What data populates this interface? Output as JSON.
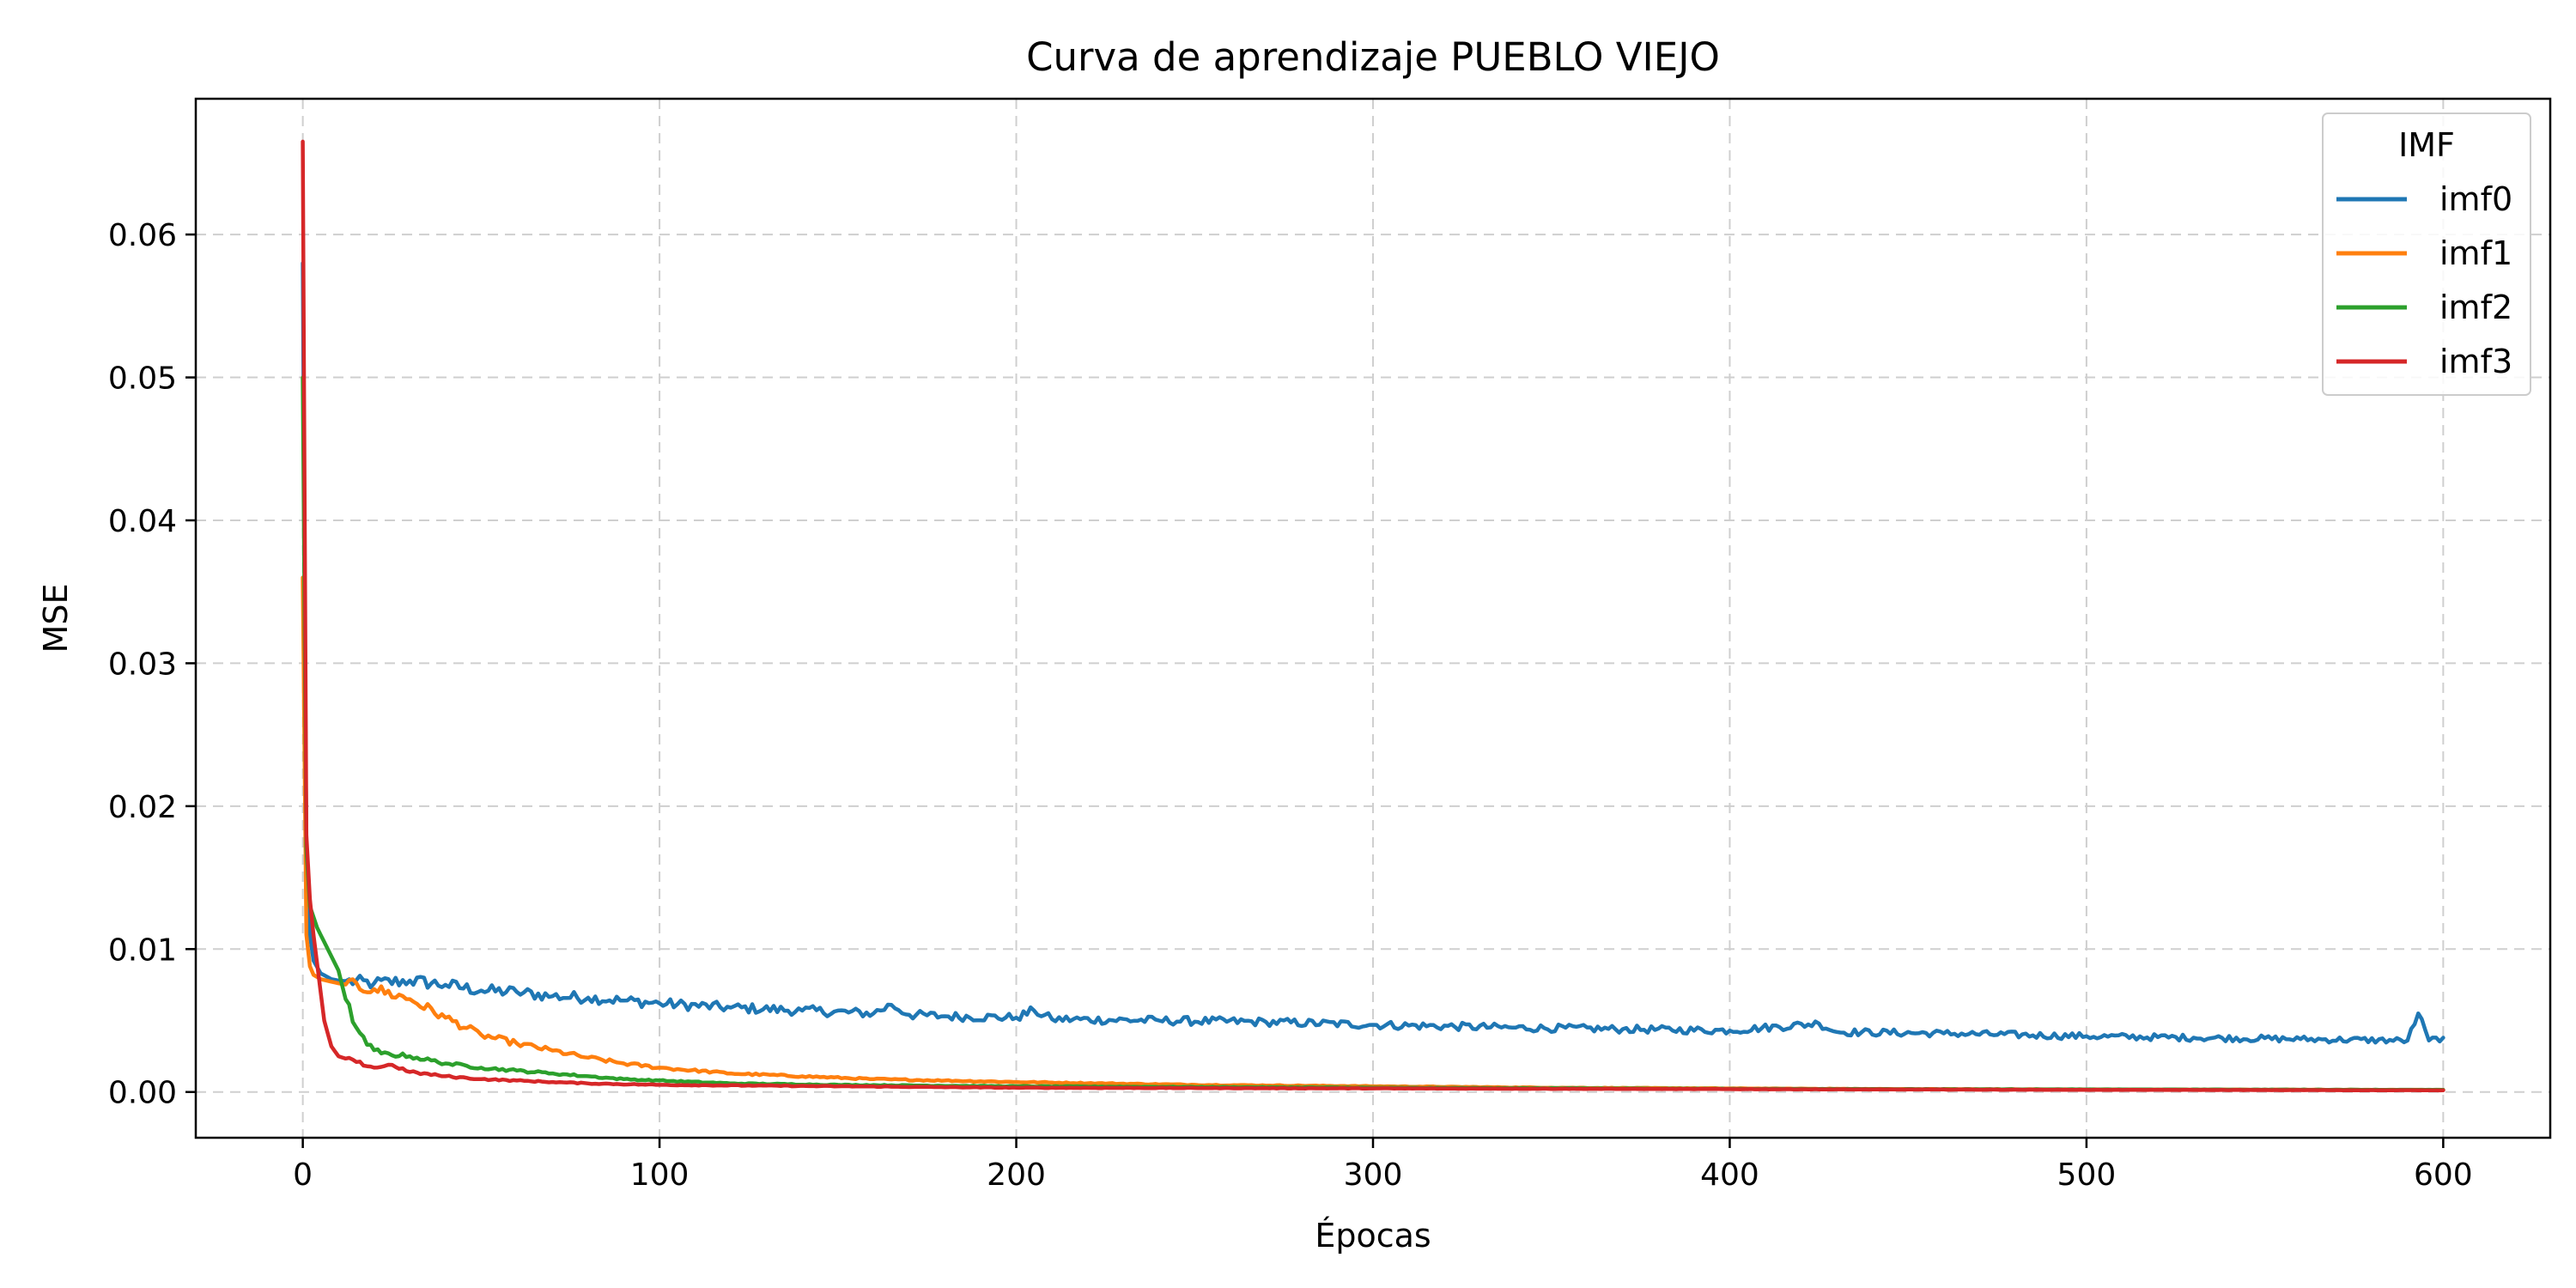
{
  "chart_data": {
    "type": "line",
    "title": "Curva de aprendizaje PUEBLO VIEJO",
    "xlabel": "Épocas",
    "ylabel": "MSE",
    "xlim": [
      -30,
      630
    ],
    "ylim": [
      -0.0032,
      0.0695
    ],
    "xticks": [
      0,
      100,
      200,
      300,
      400,
      500,
      600
    ],
    "xtick_labels": [
      "0",
      "100",
      "200",
      "300",
      "400",
      "500",
      "600"
    ],
    "yticks": [
      0.0,
      0.01,
      0.02,
      0.03,
      0.04,
      0.05,
      0.06
    ],
    "ytick_labels": [
      "0.00",
      "0.01",
      "0.02",
      "0.03",
      "0.04",
      "0.05",
      "0.06"
    ],
    "grid": true,
    "legend": {
      "title": "IMF",
      "placement": "top-right"
    },
    "series": [
      {
        "name": "imf0",
        "color": "#1f77b4",
        "points": [
          [
            0,
            0.058
          ],
          [
            1,
            0.016
          ],
          [
            2,
            0.011
          ],
          [
            3,
            0.0092
          ],
          [
            5,
            0.0083
          ],
          [
            8,
            0.0079
          ],
          [
            10,
            0.0078
          ],
          [
            20,
            0.0076
          ],
          [
            30,
            0.0078
          ],
          [
            40,
            0.0075
          ],
          [
            50,
            0.0071
          ],
          [
            60,
            0.007
          ],
          [
            70,
            0.0067
          ],
          [
            80,
            0.0066
          ],
          [
            90,
            0.0064
          ],
          [
            100,
            0.0062
          ],
          [
            120,
            0.0059
          ],
          [
            140,
            0.0057
          ],
          [
            160,
            0.0055
          ],
          [
            165,
            0.0061
          ],
          [
            170,
            0.0054
          ],
          [
            180,
            0.0053
          ],
          [
            200,
            0.0052
          ],
          [
            205,
            0.0057
          ],
          [
            210,
            0.0051
          ],
          [
            240,
            0.005
          ],
          [
            270,
            0.0049
          ],
          [
            300,
            0.0047
          ],
          [
            340,
            0.0045
          ],
          [
            370,
            0.0044
          ],
          [
            400,
            0.0043
          ],
          [
            425,
            0.0048
          ],
          [
            430,
            0.0042
          ],
          [
            460,
            0.0041
          ],
          [
            500,
            0.0039
          ],
          [
            530,
            0.0038
          ],
          [
            560,
            0.0037
          ],
          [
            590,
            0.0036
          ],
          [
            593,
            0.0055
          ],
          [
            596,
            0.0036
          ],
          [
            600,
            0.0038
          ]
        ]
      },
      {
        "name": "imf1",
        "color": "#ff7f0e",
        "points": [
          [
            0,
            0.036
          ],
          [
            1,
            0.011
          ],
          [
            2,
            0.0088
          ],
          [
            3,
            0.0082
          ],
          [
            5,
            0.0079
          ],
          [
            10,
            0.0076
          ],
          [
            20,
            0.0072
          ],
          [
            30,
            0.0065
          ],
          [
            40,
            0.0052
          ],
          [
            50,
            0.004
          ],
          [
            60,
            0.0034
          ],
          [
            70,
            0.0029
          ],
          [
            80,
            0.0024
          ],
          [
            90,
            0.002
          ],
          [
            100,
            0.0017
          ],
          [
            120,
            0.0013
          ],
          [
            140,
            0.0011
          ],
          [
            160,
            0.0009
          ],
          [
            180,
            0.0008
          ],
          [
            200,
            0.0007
          ],
          [
            250,
            0.0005
          ],
          [
            300,
            0.0004
          ],
          [
            350,
            0.0003
          ],
          [
            400,
            0.00025
          ],
          [
            450,
            0.0002
          ],
          [
            500,
            0.00018
          ],
          [
            550,
            0.00016
          ],
          [
            600,
            0.00015
          ]
        ]
      },
      {
        "name": "imf2",
        "color": "#2ca02c",
        "points": [
          [
            0,
            0.05
          ],
          [
            1,
            0.017
          ],
          [
            2,
            0.013
          ],
          [
            4,
            0.0115
          ],
          [
            6,
            0.0105
          ],
          [
            8,
            0.0095
          ],
          [
            10,
            0.0085
          ],
          [
            12,
            0.0065
          ],
          [
            15,
            0.0045
          ],
          [
            18,
            0.0033
          ],
          [
            22,
            0.0027
          ],
          [
            30,
            0.0025
          ],
          [
            40,
            0.002
          ],
          [
            50,
            0.0017
          ],
          [
            60,
            0.0015
          ],
          [
            70,
            0.0013
          ],
          [
            80,
            0.0011
          ],
          [
            90,
            0.0009
          ],
          [
            100,
            0.0008
          ],
          [
            120,
            0.0006
          ],
          [
            150,
            0.0005
          ],
          [
            200,
            0.0004
          ],
          [
            300,
            0.0003
          ],
          [
            400,
            0.00022
          ],
          [
            500,
            0.00018
          ],
          [
            600,
            0.00015
          ]
        ]
      },
      {
        "name": "imf3",
        "color": "#d62728",
        "points": [
          [
            0,
            0.0665
          ],
          [
            1,
            0.018
          ],
          [
            2,
            0.0135
          ],
          [
            3,
            0.011
          ],
          [
            4,
            0.009
          ],
          [
            5,
            0.007
          ],
          [
            6,
            0.005
          ],
          [
            8,
            0.0032
          ],
          [
            10,
            0.0025
          ],
          [
            15,
            0.0021
          ],
          [
            20,
            0.0017
          ],
          [
            25,
            0.0019
          ],
          [
            30,
            0.0014
          ],
          [
            40,
            0.0011
          ],
          [
            50,
            0.0009
          ],
          [
            60,
            0.0008
          ],
          [
            70,
            0.0007
          ],
          [
            80,
            0.0006
          ],
          [
            100,
            0.0005
          ],
          [
            150,
            0.0004
          ],
          [
            200,
            0.0003
          ],
          [
            300,
            0.00025
          ],
          [
            400,
            0.0002
          ],
          [
            500,
            0.00015
          ],
          [
            600,
            0.00012
          ]
        ]
      }
    ]
  }
}
